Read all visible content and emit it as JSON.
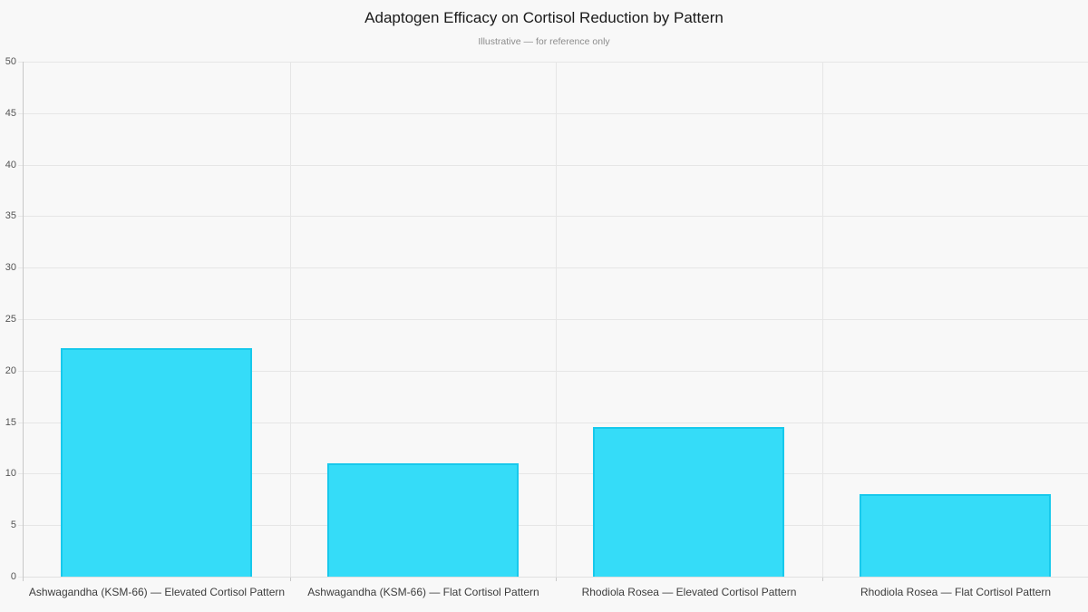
{
  "page": {
    "background": "#f8f8f8"
  },
  "chart_data": {
    "type": "bar",
    "title": "Adaptogen Efficacy on Cortisol Reduction by Pattern",
    "subtitle": "Illustrative — for reference only",
    "categories": [
      "Ashwagandha (KSM-66) — Elevated Cortisol Pattern",
      "Ashwagandha (KSM-66) — Flat Cortisol Pattern",
      "Rhodiola Rosea — Elevated Cortisol Pattern",
      "Rhodiola Rosea — Flat Cortisol Pattern"
    ],
    "values": [
      22.2,
      11,
      14.5,
      8
    ],
    "xlabel": "",
    "ylabel": "",
    "ylim": [
      0,
      50
    ],
    "yticks": [
      0,
      5,
      10,
      15,
      20,
      25,
      30,
      35,
      40,
      45,
      50
    ],
    "grid": true,
    "legend": false
  },
  "colors": {
    "background": "#f8f8f8",
    "bar_fill": "#35dcf8",
    "bar_border": "#17c9ec",
    "gridline": "#e6e6e6",
    "axis_line": "#c9c9c9",
    "bottom_line": "#e0e0e0",
    "tick_label": "#555555",
    "category_label": "#3c3c3c",
    "title": "#1a1a1a",
    "subtitle": "#8c8c8c"
  }
}
